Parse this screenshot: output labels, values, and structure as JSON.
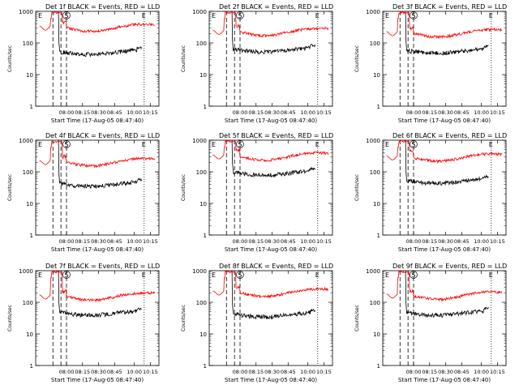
{
  "figure": {
    "xlabel": "Start Time (17-Aug-05 08:47:40)",
    "ylabel": "Counts/sec",
    "black_label": "BLACK = Events",
    "red_label": "RED = LLD"
  },
  "chart_data": [
    {
      "title": "Det 1f  BLACK = Events, RED = LLD",
      "type": "line",
      "ylim": [
        1,
        1000
      ],
      "yscale": "log",
      "yticks": [
        "1",
        "10",
        "100",
        "1000"
      ],
      "xticks": [
        "08:00",
        "08:15",
        "08:30",
        "08:45",
        "10:00",
        "10:15"
      ],
      "markers": [
        "E",
        "S",
        "E"
      ],
      "series": [
        {
          "name": "Events",
          "color": "#000000",
          "level": 50,
          "spike": 1000
        },
        {
          "name": "LLD",
          "color": "#ff0000",
          "level": 300,
          "spike": 1000
        }
      ]
    },
    {
      "title": "Det 2f  BLACK = Events, RED = LLD",
      "type": "line",
      "ylim": [
        1,
        1000
      ],
      "yscale": "log",
      "yticks": [
        "1",
        "10",
        "100",
        "1000"
      ],
      "xticks": [
        "08:00",
        "08:15",
        "08:30",
        "08:45",
        "10:00",
        "10:15"
      ],
      "markers": [
        "E",
        "S",
        "E"
      ],
      "series": [
        {
          "name": "Events",
          "color": "#000000",
          "level": 60,
          "spike": 1000
        },
        {
          "name": "LLD",
          "color": "#ff0000",
          "level": 220,
          "spike": 1000
        }
      ]
    },
    {
      "title": "Det 3f  BLACK = Events, RED = LLD",
      "type": "line",
      "ylim": [
        1,
        1000
      ],
      "yscale": "log",
      "yticks": [
        "1",
        "10",
        "100",
        "1000"
      ],
      "xticks": [
        "08:00",
        "08:15",
        "08:30",
        "08:45",
        "10:00",
        "10:15"
      ],
      "markers": [
        "E",
        "S",
        "E"
      ],
      "series": [
        {
          "name": "Events",
          "color": "#000000",
          "level": 55,
          "spike": 1000
        },
        {
          "name": "LLD",
          "color": "#ff0000",
          "level": 200,
          "spike": 1000
        }
      ]
    },
    {
      "title": "Det 4f  BLACK = Events, RED = LLD",
      "type": "line",
      "ylim": [
        1,
        1000
      ],
      "yscale": "log",
      "yticks": [
        "1",
        "10",
        "100",
        "1000"
      ],
      "xticks": [
        "08:00",
        "08:15",
        "08:30",
        "08:45",
        "10:00",
        "10:15"
      ],
      "markers": [
        "E",
        "S",
        "E"
      ],
      "series": [
        {
          "name": "Events",
          "color": "#000000",
          "level": 40,
          "spike": 1000
        },
        {
          "name": "LLD",
          "color": "#ff0000",
          "level": 200,
          "spike": 1000
        }
      ]
    },
    {
      "title": "Det 5f  BLACK = Events, RED = LLD",
      "type": "line",
      "ylim": [
        1,
        1000
      ],
      "yscale": "log",
      "yticks": [
        "1",
        "10",
        "100",
        "1000"
      ],
      "xticks": [
        "08:00",
        "08:15",
        "08:30",
        "08:45",
        "10:00",
        "10:15"
      ],
      "markers": [
        "E",
        "S",
        "E"
      ],
      "series": [
        {
          "name": "Events",
          "color": "#000000",
          "level": 90,
          "spike": 1000
        },
        {
          "name": "LLD",
          "color": "#ff0000",
          "level": 300,
          "spike": 1000
        }
      ]
    },
    {
      "title": "Det 6f  BLACK = Events, RED = LLD",
      "type": "line",
      "ylim": [
        1,
        1000
      ],
      "yscale": "log",
      "yticks": [
        "1",
        "10",
        "100",
        "1000"
      ],
      "xticks": [
        "08:00",
        "08:15",
        "08:30",
        "08:45",
        "10:00",
        "10:15"
      ],
      "markers": [
        "E",
        "S",
        "E"
      ],
      "series": [
        {
          "name": "Events",
          "color": "#000000",
          "level": 50,
          "spike": 1000
        },
        {
          "name": "LLD",
          "color": "#ff0000",
          "level": 280,
          "spike": 1000
        }
      ]
    },
    {
      "title": "Det 7f  BLACK = Events, RED = LLD",
      "type": "line",
      "ylim": [
        1,
        1000
      ],
      "yscale": "log",
      "yticks": [
        "1",
        "10",
        "100",
        "1000"
      ],
      "xticks": [
        "08:00",
        "08:15",
        "08:30",
        "08:45",
        "10:00",
        "10:15"
      ],
      "markers": [
        "E",
        "S",
        "E"
      ],
      "series": [
        {
          "name": "Events",
          "color": "#000000",
          "level": 45,
          "spike": 1000
        },
        {
          "name": "LLD",
          "color": "#ff0000",
          "level": 150,
          "spike": 1000
        }
      ]
    },
    {
      "title": "Det 8f  BLACK = Events, RED = LLD",
      "type": "line",
      "ylim": [
        1,
        1000
      ],
      "yscale": "log",
      "yticks": [
        "1",
        "10",
        "100",
        "1000"
      ],
      "xticks": [
        "08:00",
        "08:15",
        "08:30",
        "08:45",
        "10:00",
        "10:15"
      ],
      "markers": [
        "E",
        "S",
        "E"
      ],
      "series": [
        {
          "name": "Events",
          "color": "#000000",
          "level": 40,
          "spike": 1000
        },
        {
          "name": "LLD",
          "color": "#ff0000",
          "level": 200,
          "spike": 1000
        }
      ]
    },
    {
      "title": "Det 9f  BLACK = Events, RED = LLD",
      "type": "line",
      "ylim": [
        1,
        1000
      ],
      "yscale": "log",
      "yticks": [
        "1",
        "10",
        "100",
        "1000"
      ],
      "xticks": [
        "08:00",
        "08:15",
        "08:30",
        "08:45",
        "10:00",
        "10:15"
      ],
      "markers": [
        "E",
        "S",
        "E"
      ],
      "series": [
        {
          "name": "Events",
          "color": "#000000",
          "level": 45,
          "spike": 1000
        },
        {
          "name": "LLD",
          "color": "#ff0000",
          "level": 160,
          "spike": 1000
        }
      ]
    }
  ]
}
